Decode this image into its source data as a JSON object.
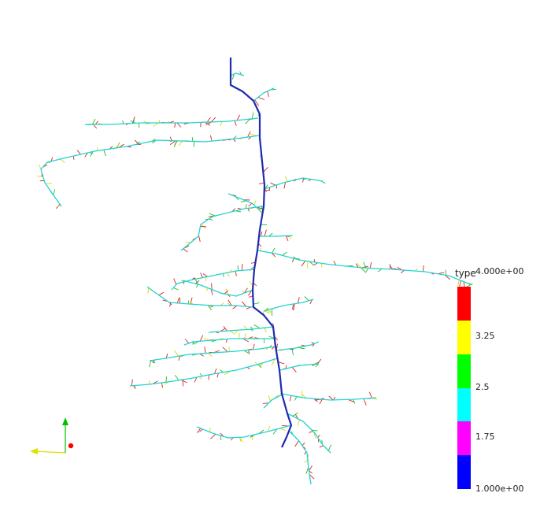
{
  "colorbar": {
    "title": "type",
    "max_label": "4.000e+00",
    "min_label": "1.000e+00",
    "ticks": [
      "3.25",
      "2.5",
      "1.75"
    ],
    "bands": [
      {
        "color": "#ff0000"
      },
      {
        "color": "#ffff00"
      },
      {
        "color": "#00ff00"
      },
      {
        "color": "#00ffff"
      },
      {
        "color": "#ff00ff"
      },
      {
        "color": "#0000ff"
      }
    ]
  },
  "colors": {
    "taproot": "#1f2bb0",
    "lateral": "#22d3d3",
    "hair_red": "#e02020",
    "hair_yellow": "#d8d800",
    "hair_green": "#20c020",
    "axis_x": "#e0e000",
    "axis_y": "#00c000",
    "axis_z": "#ff0000"
  },
  "icons": {
    "orientation": "orientation-axes-icon"
  }
}
